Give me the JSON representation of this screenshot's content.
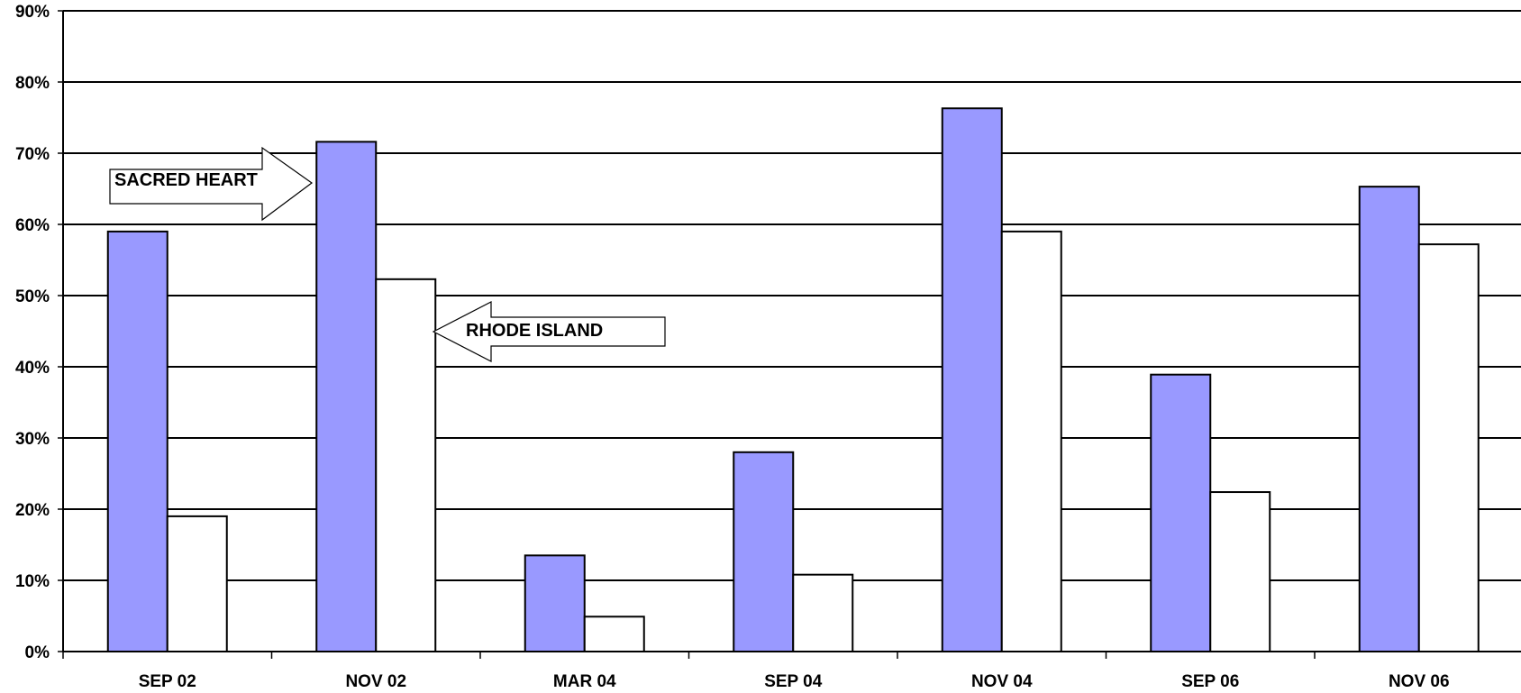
{
  "chart_data": {
    "type": "bar",
    "categories": [
      "SEP 02",
      "NOV 02",
      "MAR 04",
      "SEP 04",
      "NOV 04",
      "SEP 06",
      "NOV 06"
    ],
    "series": [
      {
        "name": "SACRED HEART",
        "values": [
          59,
          71.6,
          13.5,
          28,
          76.3,
          38.9,
          65.3
        ]
      },
      {
        "name": "RHODE ISLAND",
        "values": [
          19,
          52.3,
          4.9,
          10.8,
          59,
          22.4,
          57.2
        ]
      }
    ],
    "y_ticks": [
      "0%",
      "10%",
      "20%",
      "30%",
      "40%",
      "50%",
      "60%",
      "70%",
      "80%",
      "90%"
    ],
    "ylim": [
      0,
      90
    ],
    "grid": true,
    "title": "",
    "xlabel": "",
    "ylabel": "",
    "annotations": [
      "SACRED HEART",
      "RHODE ISLAND"
    ]
  },
  "colors": {
    "series_1": "#9999ff",
    "series_2": "#ffffff",
    "gridline": "#000000",
    "outline": "#000000"
  }
}
